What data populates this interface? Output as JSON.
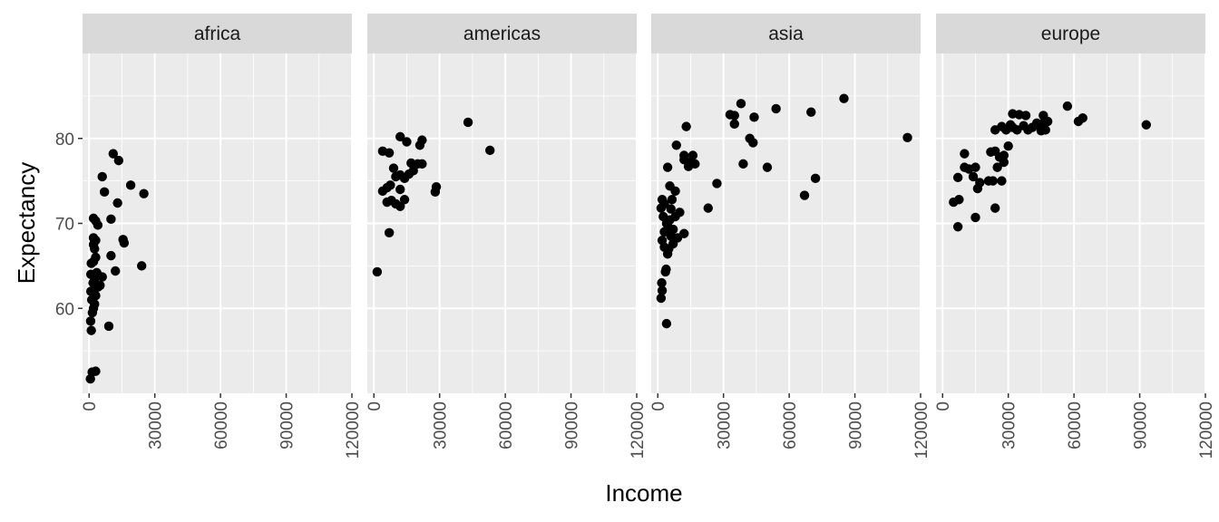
{
  "chart_data": {
    "type": "scatter",
    "facet_by": "region",
    "xlabel": "Income",
    "ylabel": "Expectancy",
    "xlim": [
      -3000,
      120000
    ],
    "ylim": [
      50,
      90
    ],
    "x_ticks": [
      0,
      30000,
      60000,
      90000,
      120000
    ],
    "x_tick_labels": [
      "0",
      "30000",
      "60000",
      "90000",
      "120000"
    ],
    "y_ticks": [
      60,
      70,
      80
    ],
    "y_tick_labels": [
      "60",
      "70",
      "80"
    ],
    "grid": true,
    "colors": {
      "panel": "#ebebeb",
      "strip": "#d9d9d9",
      "grid": "#ffffff",
      "point": "#000000"
    },
    "panels": [
      {
        "label": "africa",
        "points": [
          [
            600,
            51.7
          ],
          [
            1400,
            52.5
          ],
          [
            3000,
            52.6
          ],
          [
            1000,
            57.4
          ],
          [
            9000,
            57.9
          ],
          [
            700,
            58.5
          ],
          [
            1500,
            59.5
          ],
          [
            2000,
            60.0
          ],
          [
            2500,
            60.5
          ],
          [
            1200,
            61.0
          ],
          [
            3000,
            61.5
          ],
          [
            800,
            62.0
          ],
          [
            4000,
            62.5
          ],
          [
            5000,
            62.7
          ],
          [
            1800,
            63.0
          ],
          [
            2500,
            63.5
          ],
          [
            6000,
            63.7
          ],
          [
            800,
            64.0
          ],
          [
            3500,
            64.2
          ],
          [
            12000,
            64.4
          ],
          [
            24000,
            65.0
          ],
          [
            1000,
            65.3
          ],
          [
            2000,
            65.5
          ],
          [
            3000,
            66.0
          ],
          [
            10000,
            66.2
          ],
          [
            2500,
            67.0
          ],
          [
            2000,
            67.5
          ],
          [
            16000,
            67.7
          ],
          [
            3000,
            68.0
          ],
          [
            15500,
            68.1
          ],
          [
            2000,
            68.3
          ],
          [
            4000,
            69.8
          ],
          [
            3000,
            70.3
          ],
          [
            2000,
            70.6
          ],
          [
            10000,
            70.5
          ],
          [
            13000,
            72.4
          ],
          [
            25000,
            73.5
          ],
          [
            7000,
            73.7
          ],
          [
            19000,
            74.5
          ],
          [
            6000,
            75.5
          ],
          [
            13500,
            77.4
          ],
          [
            11000,
            78.2
          ]
        ]
      },
      {
        "label": "americas",
        "points": [
          [
            1500,
            64.3
          ],
          [
            7000,
            68.9
          ],
          [
            6000,
            72.5
          ],
          [
            8000,
            72.7
          ],
          [
            10000,
            72.3
          ],
          [
            12000,
            72.0
          ],
          [
            14000,
            72.8
          ],
          [
            12000,
            74.0
          ],
          [
            6000,
            74.2
          ],
          [
            7500,
            74.5
          ],
          [
            4000,
            73.8
          ],
          [
            28000,
            73.7
          ],
          [
            28500,
            74.3
          ],
          [
            10000,
            75.5
          ],
          [
            12000,
            75.7
          ],
          [
            14000,
            75.3
          ],
          [
            16000,
            75.8
          ],
          [
            18000,
            76.2
          ],
          [
            9000,
            76.5
          ],
          [
            17000,
            77.1
          ],
          [
            20000,
            77.0
          ],
          [
            22000,
            77.0
          ],
          [
            4000,
            78.5
          ],
          [
            7000,
            78.3
          ],
          [
            12000,
            80.2
          ],
          [
            15000,
            79.6
          ],
          [
            21000,
            79.2
          ],
          [
            22000,
            79.8
          ],
          [
            53000,
            78.6
          ],
          [
            43000,
            81.9
          ]
        ]
      },
      {
        "label": "asia",
        "points": [
          [
            4000,
            58.2
          ],
          [
            1500,
            61.2
          ],
          [
            2000,
            62.1
          ],
          [
            1800,
            63.0
          ],
          [
            3500,
            64.3
          ],
          [
            3800,
            64.6
          ],
          [
            4500,
            66.4
          ],
          [
            3000,
            67.2
          ],
          [
            5000,
            67.0
          ],
          [
            7000,
            67.6
          ],
          [
            2000,
            68.0
          ],
          [
            6000,
            68.5
          ],
          [
            9000,
            68.3
          ],
          [
            12000,
            68.8
          ],
          [
            3000,
            69.0
          ],
          [
            5000,
            69.5
          ],
          [
            7000,
            69.3
          ],
          [
            4000,
            70.0
          ],
          [
            5500,
            70.4
          ],
          [
            2500,
            70.8
          ],
          [
            8000,
            70.8
          ],
          [
            10000,
            71.3
          ],
          [
            6000,
            71.7
          ],
          [
            1500,
            71.8
          ],
          [
            3000,
            72.3
          ],
          [
            23000,
            71.8
          ],
          [
            2000,
            72.8
          ],
          [
            6500,
            72.8
          ],
          [
            8000,
            73.8
          ],
          [
            5500,
            74.4
          ],
          [
            27000,
            74.7
          ],
          [
            72000,
            75.3
          ],
          [
            67000,
            73.3
          ],
          [
            4500,
            76.6
          ],
          [
            14000,
            76.7
          ],
          [
            15000,
            77.2
          ],
          [
            17000,
            77.0
          ],
          [
            12000,
            77.5
          ],
          [
            16000,
            78.0
          ],
          [
            12000,
            78.0
          ],
          [
            39000,
            77.0
          ],
          [
            50000,
            76.6
          ],
          [
            8500,
            79.2
          ],
          [
            13000,
            81.4
          ],
          [
            42000,
            80.0
          ],
          [
            43500,
            79.5
          ],
          [
            114000,
            80.1
          ],
          [
            35000,
            81.7
          ],
          [
            33000,
            82.8
          ],
          [
            35000,
            82.7
          ],
          [
            44000,
            82.5
          ],
          [
            54000,
            83.5
          ],
          [
            70000,
            83.1
          ],
          [
            38000,
            84.1
          ],
          [
            85000,
            84.7
          ]
        ]
      },
      {
        "label": "europe",
        "points": [
          [
            7000,
            69.6
          ],
          [
            5000,
            72.5
          ],
          [
            7500,
            72.8
          ],
          [
            15000,
            70.7
          ],
          [
            24000,
            71.8
          ],
          [
            7000,
            75.4
          ],
          [
            10000,
            76.6
          ],
          [
            14000,
            75.5
          ],
          [
            16000,
            74.1
          ],
          [
            17000,
            74.8
          ],
          [
            21000,
            75.0
          ],
          [
            23000,
            75.0
          ],
          [
            27000,
            75.0
          ],
          [
            12000,
            76.4
          ],
          [
            15000,
            76.6
          ],
          [
            25000,
            76.6
          ],
          [
            28000,
            77.2
          ],
          [
            10000,
            78.2
          ],
          [
            22000,
            78.4
          ],
          [
            24000,
            78.5
          ],
          [
            26000,
            77.8
          ],
          [
            28000,
            78.0
          ],
          [
            30000,
            79.1
          ],
          [
            24000,
            81.0
          ],
          [
            27000,
            81.4
          ],
          [
            29000,
            81.0
          ],
          [
            32000,
            81.3
          ],
          [
            34000,
            81.0
          ],
          [
            37000,
            81.5
          ],
          [
            39000,
            81.0
          ],
          [
            44000,
            81.5
          ],
          [
            45000,
            80.9
          ],
          [
            47000,
            81.0
          ],
          [
            41000,
            81.3
          ],
          [
            43000,
            81.8
          ],
          [
            31000,
            81.6
          ],
          [
            46000,
            81.8
          ],
          [
            48000,
            82.0
          ],
          [
            32000,
            82.9
          ],
          [
            35000,
            82.8
          ],
          [
            38000,
            82.7
          ],
          [
            46000,
            82.7
          ],
          [
            62000,
            82.0
          ],
          [
            64000,
            82.4
          ],
          [
            57000,
            83.8
          ],
          [
            93000,
            81.6
          ]
        ]
      }
    ]
  }
}
